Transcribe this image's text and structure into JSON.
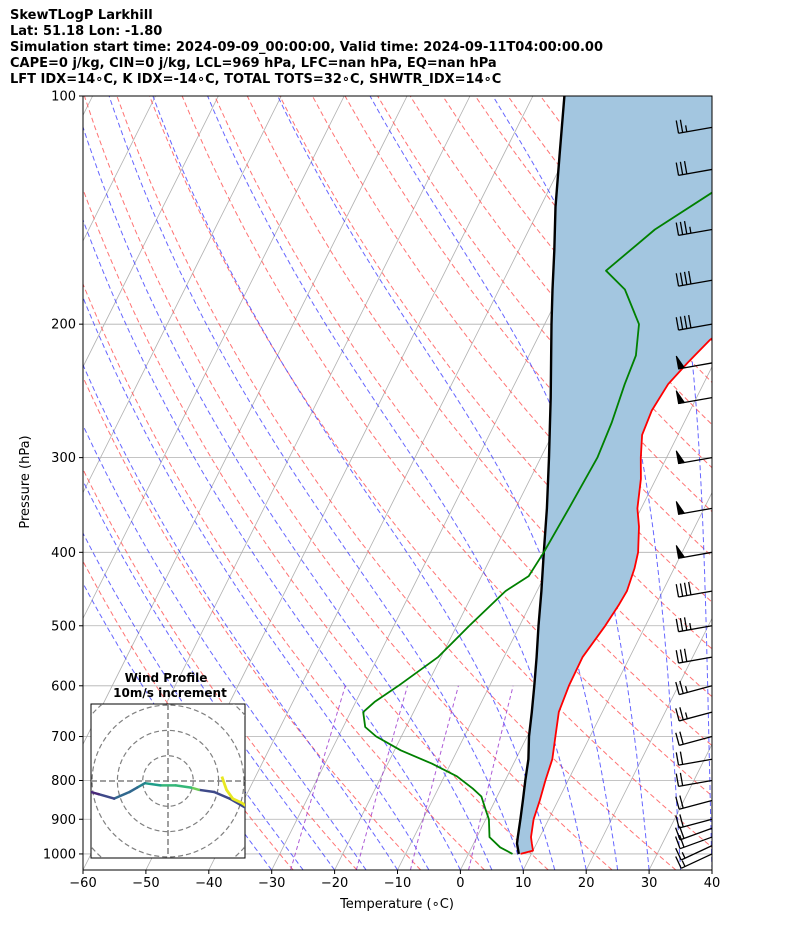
{
  "header": {
    "line1": "SkewTLogP Larkhill",
    "line2": "Lat: 51.18   Lon: -1.80",
    "line3": "Simulation start time: 2024-09-09_00:00:00, Valid time: 2024-09-11T04:00:00.00",
    "line4": "CAPE=0 j/kg, CIN=0 j/kg, LCL=969 hPa, LFC=nan hPa, EQ=nan hPa",
    "line5": "LFT IDX=14∘C, K IDX=-14∘C, TOTAL TOTS=32∘C, SHWTR_IDX=14∘C"
  },
  "chart_data": {
    "type": "line",
    "title": "SkewTLogP Larkhill",
    "xlabel": "Temperature (∘C)",
    "ylabel": "Pressure (hPa)",
    "xlim": [
      -60,
      40
    ],
    "ylim": [
      1050,
      100
    ],
    "y_scale": "log",
    "x_ticks": [
      -60,
      -50,
      -40,
      -30,
      -20,
      -10,
      0,
      10,
      20,
      30,
      40
    ],
    "x_tick_labels": [
      "−60",
      "−50",
      "−40",
      "−30",
      "−20",
      "−10",
      "0",
      "10",
      "20",
      "30",
      "40"
    ],
    "y_ticks": [
      1000,
      900,
      800,
      700,
      600,
      500,
      400,
      300,
      200,
      100
    ],
    "y_tick_labels": [
      "1000",
      "900",
      "800",
      "700",
      "600",
      "500",
      "400",
      "300",
      "200",
      "100"
    ],
    "grid": true,
    "colors": {
      "temperature": "#ff0000",
      "dewpoint": "#008000",
      "parcel": "#000000",
      "cape_fill": "#a3c6e0",
      "dry_adiabat": "#ff5a5a",
      "moist_adiabat": "#4040ff",
      "mixing_ratio": "#9932cc",
      "isobar_grid": "#b0b0b0"
    },
    "series": [
      {
        "key": "temperature",
        "pressure": [
          1000,
          990,
          970,
          950,
          900,
          850,
          800,
          750,
          700,
          650,
          600,
          550,
          500,
          470,
          450,
          420,
          400,
          370,
          350,
          320,
          300,
          280,
          260,
          240,
          225,
          210,
          200,
          180,
          160,
          140,
          125,
          110,
          100
        ],
        "values": [
          8.3,
          10.0,
          9.3,
          8.6,
          7.6,
          7.1,
          6.4,
          5.8,
          4.5,
          3.1,
          2.6,
          2.5,
          3.6,
          4.1,
          4.3,
          3.7,
          3.0,
          1.1,
          -0.6,
          -2.4,
          -4.1,
          -5.7,
          -6.1,
          -5.6,
          -4.2,
          -2.5,
          -0.5,
          3.5,
          6.3,
          8.0,
          11.0,
          13.5,
          16.9
        ]
      },
      {
        "key": "dewpoint",
        "pressure": [
          1000,
          980,
          950,
          900,
          870,
          840,
          820,
          790,
          760,
          730,
          700,
          680,
          650,
          630,
          600,
          550,
          500,
          450,
          430,
          400,
          350,
          300,
          270,
          240,
          220,
          200,
          180,
          170,
          150,
          125,
          100
        ],
        "values": [
          7.0,
          4.5,
          2.0,
          0.5,
          -1.0,
          -2.5,
          -4.5,
          -8.0,
          -13.0,
          -19.0,
          -24.0,
          -26.5,
          -28.0,
          -27.0,
          -24.5,
          -20.5,
          -18.0,
          -15.0,
          -12.5,
          -12.0,
          -11.5,
          -11.0,
          -11.5,
          -12.5,
          -13.0,
          -15.0,
          -20.0,
          -24.5,
          -20.0,
          -10.0,
          1.5
        ]
      },
      {
        "key": "parcel",
        "pressure": [
          1000,
          969,
          950,
          900,
          850,
          800,
          750,
          700,
          650,
          600,
          550,
          500,
          450,
          400,
          350,
          300,
          250,
          200,
          180,
          160,
          140,
          120,
          100
        ],
        "values": [
          8.0,
          6.9,
          6.5,
          5.5,
          4.4,
          3.2,
          2.0,
          0.3,
          -1.2,
          -2.9,
          -4.8,
          -7.0,
          -9.3,
          -12.0,
          -15.0,
          -18.7,
          -23.2,
          -28.9,
          -31.5,
          -34.3,
          -37.6,
          -41.0,
          -45.0
        ]
      }
    ],
    "wind_barbs": {
      "pressure": [
        1000,
        975,
        950,
        925,
        900,
        850,
        800,
        750,
        700,
        650,
        600,
        550,
        500,
        450,
        400,
        350,
        300,
        250,
        225,
        200,
        175,
        150,
        125,
        110
      ],
      "speed_kt": [
        15,
        15,
        20,
        20,
        20,
        20,
        20,
        20,
        20,
        25,
        25,
        30,
        35,
        40,
        50,
        50,
        50,
        50,
        50,
        40,
        40,
        35,
        30,
        25
      ],
      "direction_deg": [
        295,
        295,
        290,
        290,
        285,
        285,
        280,
        280,
        285,
        285,
        285,
        280,
        280,
        280,
        280,
        280,
        280,
        280,
        280,
        280,
        280,
        280,
        280,
        280
      ]
    },
    "hodograph": {
      "title_line1": "Wind Profile",
      "title_line2": "10m/s increment",
      "u": [
        5,
        4,
        3,
        2,
        1.5,
        0.5,
        -0.5,
        -1.5,
        -2,
        -2.5,
        -3.5,
        -4.5,
        -5.5,
        -6.5
      ],
      "v": [
        -1.2,
        -0.8,
        -0.5,
        -0.4,
        -0.3,
        -0.2,
        -0.2,
        -0.1,
        -0.3,
        -0.5,
        -0.8,
        -0.6,
        -0.4,
        -0.1
      ],
      "yellow_u": [
        3.5,
        3.8,
        4.2,
        4.8,
        5.2
      ],
      "yellow_v": [
        0.2,
        -0.4,
        -0.8,
        -1.0,
        -1.2
      ]
    }
  }
}
